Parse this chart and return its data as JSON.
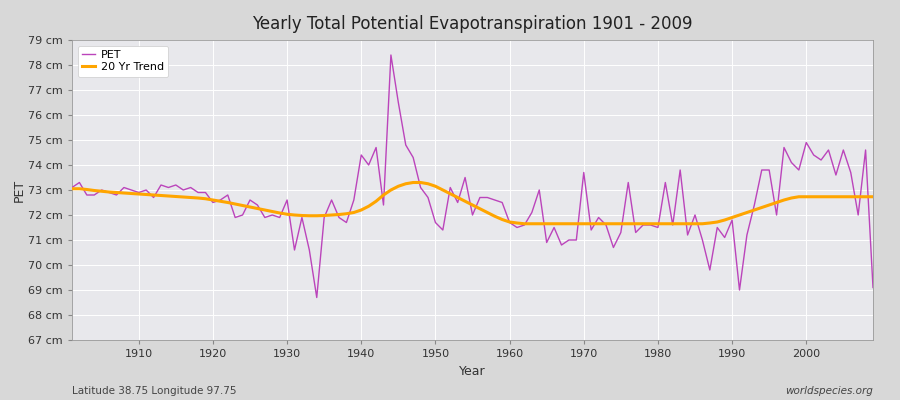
{
  "title": "Yearly Total Potential Evapotranspiration 1901 - 2009",
  "xlabel": "Year",
  "ylabel": "PET",
  "subtitle": "Latitude 38.75 Longitude 97.75",
  "watermark": "worldspecies.org",
  "pet_color": "#bb44bb",
  "trend_color": "#ffa500",
  "background_color": "#d8d8d8",
  "plot_bg_color": "#e8e8ec",
  "ylim": [
    67,
    79
  ],
  "xlim": [
    1901,
    2009
  ],
  "yticks": [
    67,
    68,
    69,
    70,
    71,
    72,
    73,
    74,
    75,
    76,
    77,
    78,
    79
  ],
  "xticks": [
    1910,
    1920,
    1930,
    1940,
    1950,
    1960,
    1970,
    1980,
    1990,
    2000
  ],
  "years": [
    1901,
    1902,
    1903,
    1904,
    1905,
    1906,
    1907,
    1908,
    1909,
    1910,
    1911,
    1912,
    1913,
    1914,
    1915,
    1916,
    1917,
    1918,
    1919,
    1920,
    1921,
    1922,
    1923,
    1924,
    1925,
    1926,
    1927,
    1928,
    1929,
    1930,
    1931,
    1932,
    1933,
    1934,
    1935,
    1936,
    1937,
    1938,
    1939,
    1940,
    1941,
    1942,
    1943,
    1944,
    1945,
    1946,
    1947,
    1948,
    1949,
    1950,
    1951,
    1952,
    1953,
    1954,
    1955,
    1956,
    1957,
    1958,
    1959,
    1960,
    1961,
    1962,
    1963,
    1964,
    1965,
    1966,
    1967,
    1968,
    1969,
    1970,
    1971,
    1972,
    1973,
    1974,
    1975,
    1976,
    1977,
    1978,
    1979,
    1980,
    1981,
    1982,
    1983,
    1984,
    1985,
    1986,
    1987,
    1988,
    1989,
    1990,
    1991,
    1992,
    1993,
    1994,
    1995,
    1996,
    1997,
    1998,
    1999,
    2000,
    2001,
    2002,
    2003,
    2004,
    2005,
    2006,
    2007,
    2008,
    2009
  ],
  "pet": [
    73.1,
    73.3,
    72.8,
    72.8,
    73.0,
    72.9,
    72.8,
    73.1,
    73.0,
    72.9,
    73.0,
    72.7,
    73.2,
    73.1,
    73.2,
    73.0,
    73.1,
    72.9,
    72.9,
    72.5,
    72.6,
    72.8,
    71.9,
    72.0,
    72.6,
    72.4,
    71.9,
    72.0,
    71.9,
    72.6,
    70.6,
    71.9,
    70.6,
    68.7,
    71.9,
    72.6,
    71.9,
    71.7,
    72.6,
    74.4,
    74.0,
    74.7,
    72.4,
    78.4,
    76.5,
    74.8,
    74.3,
    73.1,
    72.7,
    71.7,
    71.4,
    73.1,
    72.5,
    73.5,
    72.0,
    72.7,
    72.7,
    72.6,
    72.5,
    71.7,
    71.5,
    71.6,
    72.1,
    73.0,
    70.9,
    71.5,
    70.8,
    71.0,
    71.0,
    73.7,
    71.4,
    71.9,
    71.6,
    70.7,
    71.3,
    73.3,
    71.3,
    71.6,
    71.6,
    71.5,
    73.3,
    71.6,
    73.8,
    71.2,
    72.0,
    71.0,
    69.8,
    71.5,
    71.1,
    71.8,
    69.0,
    71.2,
    72.4,
    73.8,
    73.8,
    72.0,
    74.7,
    74.1,
    73.8,
    74.9,
    74.4,
    74.2,
    74.6,
    73.6,
    74.6,
    73.7,
    72.0,
    74.6,
    69.1
  ],
  "trend": [
    73.05,
    73.05,
    73.02,
    72.98,
    72.95,
    72.92,
    72.9,
    72.88,
    72.86,
    72.84,
    72.82,
    72.8,
    72.78,
    72.76,
    72.74,
    72.72,
    72.7,
    72.68,
    72.65,
    72.6,
    72.55,
    72.5,
    72.44,
    72.38,
    72.32,
    72.26,
    72.2,
    72.14,
    72.08,
    72.03,
    72.0,
    71.98,
    71.97,
    71.97,
    71.98,
    72.0,
    72.02,
    72.05,
    72.1,
    72.2,
    72.35,
    72.55,
    72.8,
    73.0,
    73.15,
    73.25,
    73.3,
    73.3,
    73.25,
    73.15,
    73.0,
    72.85,
    72.7,
    72.55,
    72.4,
    72.25,
    72.1,
    71.95,
    71.82,
    71.72,
    71.68,
    71.65,
    71.65,
    71.65,
    71.65,
    71.65,
    71.65,
    71.65,
    71.65,
    71.65,
    71.65,
    71.65,
    71.65,
    71.65,
    71.65,
    71.65,
    71.65,
    71.65,
    71.65,
    71.65,
    71.65,
    71.65,
    71.65,
    71.65,
    71.65,
    71.65,
    71.68,
    71.72,
    71.8,
    71.9,
    72.0,
    72.1,
    72.2,
    72.3,
    72.4,
    72.5,
    72.6,
    72.68,
    72.73,
    72.73,
    72.73,
    72.73,
    72.73,
    72.73,
    72.73,
    72.73,
    72.73,
    72.73,
    72.73
  ]
}
